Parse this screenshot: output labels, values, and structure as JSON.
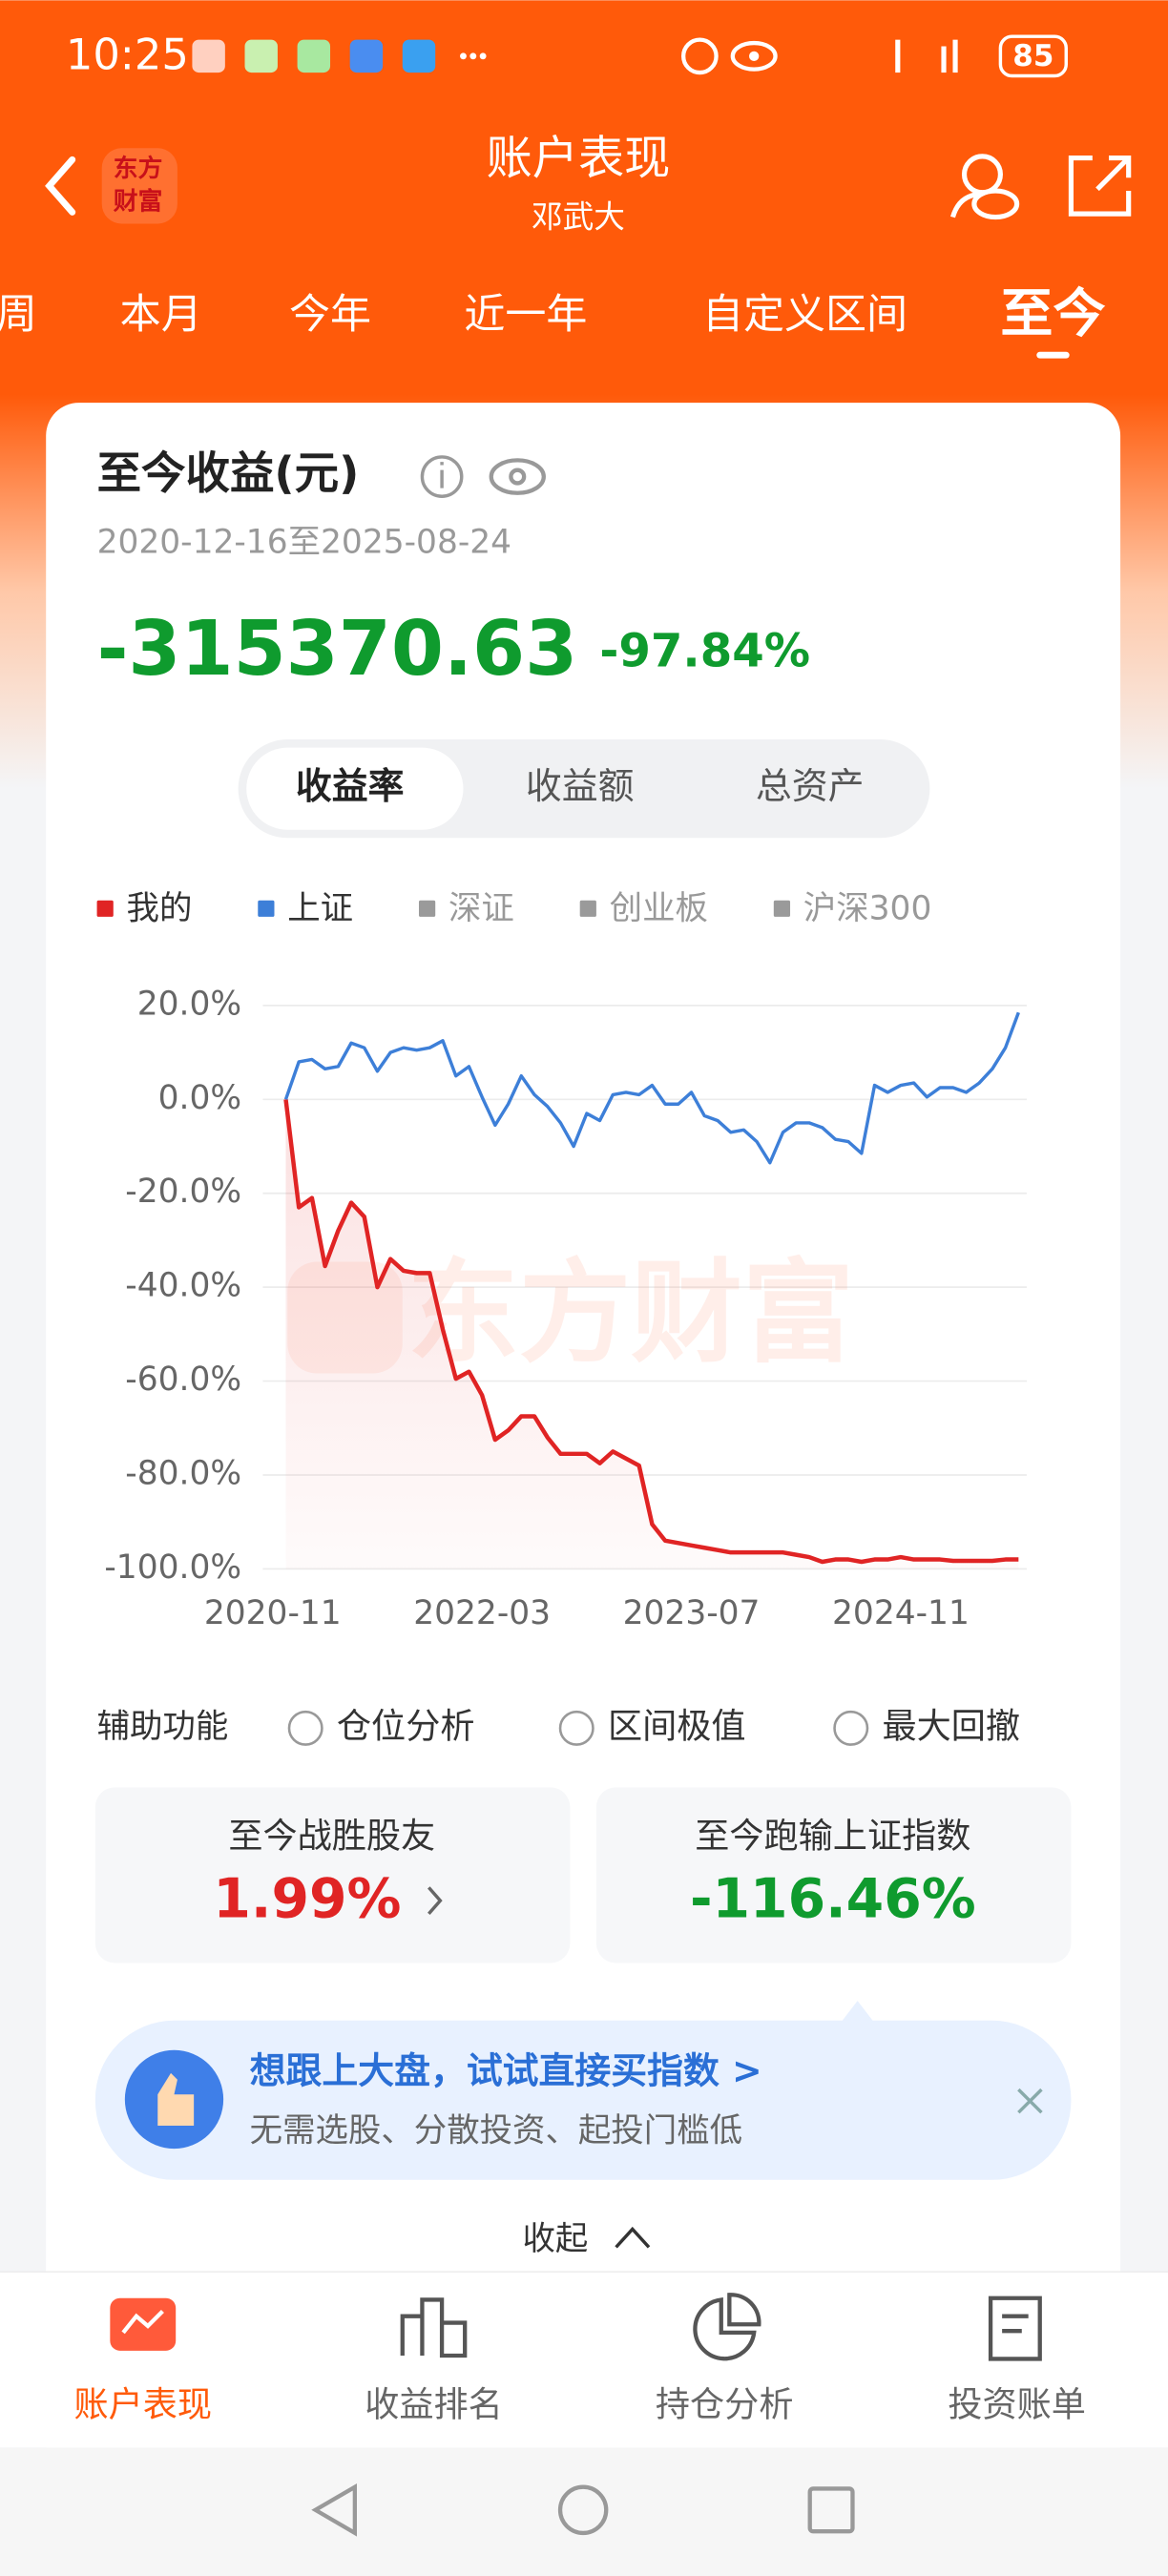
{
  "status_bar": {
    "time": "10:25",
    "battery": "85"
  },
  "header": {
    "logo": [
      "东方",
      "财富"
    ],
    "title": "账户表现",
    "subtitle": "邓武大"
  },
  "tabs": {
    "items": [
      "周",
      "本月",
      "今年",
      "近一年",
      "自定义区间",
      "至今"
    ],
    "active": 5
  },
  "card": {
    "title": "至今收益(元)",
    "date_range": "2020-12-16至2025-08-24",
    "amount": "-315370.63",
    "percent": "-97.84%"
  },
  "segments": {
    "items": [
      "收益率",
      "收益额",
      "总资产"
    ],
    "active": 0
  },
  "legend": {
    "others": [
      "深证",
      "创业板",
      "沪深300"
    ]
  },
  "chart": {
    "type": "line",
    "watermark": "东方财富",
    "x": [
      "2020-12",
      "2021-01",
      "2021-02",
      "2021-03",
      "2021-04",
      "2021-05",
      "2021-06",
      "2021-07",
      "2021-08",
      "2021-09",
      "2021-10",
      "2021-11",
      "2021-12",
      "2022-01",
      "2022-02",
      "2022-03",
      "2022-04",
      "2022-05",
      "2022-06",
      "2022-07",
      "2022-08",
      "2022-09",
      "2022-10",
      "2022-11",
      "2022-12",
      "2023-01",
      "2023-02",
      "2023-03",
      "2023-04",
      "2023-05",
      "2023-06",
      "2023-07",
      "2023-08",
      "2023-09",
      "2023-10",
      "2023-11",
      "2023-12",
      "2024-01",
      "2024-02",
      "2024-03",
      "2024-04",
      "2024-05",
      "2024-06",
      "2024-07",
      "2024-08",
      "2024-09",
      "2024-10",
      "2024-11",
      "2024-12",
      "2025-01",
      "2025-02",
      "2025-03",
      "2025-04",
      "2025-05",
      "2025-06",
      "2025-07",
      "2025-08"
    ],
    "series": [
      {
        "name": "我的",
        "color": "#e02424",
        "values": [
          0,
          -23,
          -21,
          -35.5,
          -28,
          -22,
          -25,
          -40,
          -34,
          -36.5,
          -37,
          -37,
          -49,
          -59.5,
          -58,
          -63,
          -72.5,
          -70.5,
          -67.5,
          -67.5,
          -72,
          -75.5,
          -75.5,
          -75.5,
          -77.5,
          -75,
          -76.5,
          -78,
          -90.5,
          -94,
          -94.5,
          -95,
          -95.5,
          -96,
          -96.5,
          -96.5,
          -96.5,
          -96.5,
          -96.5,
          -97,
          -97.5,
          -98.5,
          -98,
          -98,
          -98.5,
          -98,
          -98,
          -97.5,
          -98,
          -98,
          -98,
          -98.3,
          -98.3,
          -98.3,
          -98.3,
          -98,
          -98
        ]
      },
      {
        "name": "上证",
        "color": "#3d7fd8",
        "values": [
          0,
          8,
          8.5,
          6.5,
          7,
          12,
          11,
          6,
          10,
          11,
          10.5,
          11,
          12.5,
          5,
          7,
          0.5,
          -5.5,
          -1,
          5,
          1,
          -1.5,
          -5,
          -10,
          -3,
          -4.5,
          1,
          1.5,
          1,
          3,
          -1,
          -1,
          1.5,
          -3.5,
          -4.5,
          -7,
          -6.5,
          -9,
          -13.5,
          -7,
          -5,
          -5,
          -6,
          -8.5,
          -9,
          -11.5,
          3,
          1.5,
          3,
          3.5,
          0.5,
          2.5,
          2.5,
          1.5,
          3.5,
          6.5,
          11,
          18.5
        ]
      }
    ],
    "xlim": [
      "2020-11",
      "2025-08"
    ],
    "xticks": [
      "2020-11",
      "2022-03",
      "2023-07",
      "2024-11"
    ],
    "ylim": [
      -100,
      20
    ],
    "yticks": [
      {
        "value": 20,
        "label": "20.0%"
      },
      {
        "value": 0,
        "label": "0.0%"
      },
      {
        "value": -20,
        "label": "-20.0%"
      },
      {
        "value": -40,
        "label": "-40.0%"
      },
      {
        "value": -60,
        "label": "-60.0%"
      },
      {
        "value": -80,
        "label": "-80.0%"
      },
      {
        "value": -100,
        "label": "-100.0%"
      }
    ],
    "grid": true
  },
  "aux": {
    "label": "辅助功能",
    "options": [
      "仓位分析",
      "区间极值",
      "最大回撤"
    ]
  },
  "stats": [
    {
      "label": "至今战胜股友",
      "value": "1.99%"
    },
    {
      "label": "至今跑输上证指数",
      "value": "-116.46%"
    }
  ],
  "promo": {
    "title": "想跟上大盘，试试直接买指数 >",
    "subtitle": "无需选股、分散投资、起投门槛低"
  },
  "collapse": "收起",
  "nav": {
    "items": [
      "账户表现",
      "收益排名",
      "持仓分析",
      "投资账单"
    ],
    "active": 0
  }
}
